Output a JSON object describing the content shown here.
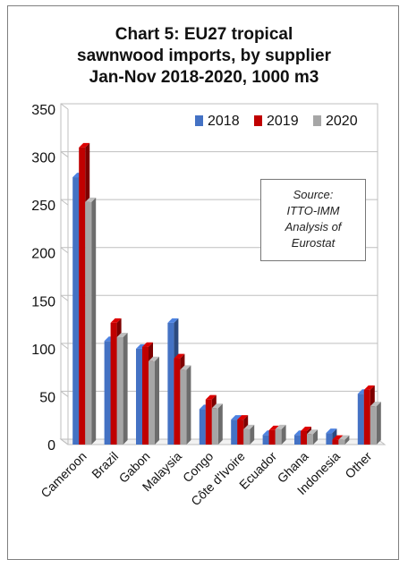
{
  "chart_data": {
    "type": "bar",
    "title_lines": [
      "Chart 5: EU27 tropical",
      "sawnwood imports, by supplier",
      "Jan-Nov 2018-2020, 1000 m3"
    ],
    "categories": [
      "Cameroon",
      "Brazil",
      "Gabon",
      "Malaysia",
      "Congo",
      "Côte d'Ivoire",
      "Ecuador",
      "Ghana",
      "Indonesia",
      "Other"
    ],
    "series": [
      {
        "name": "2018",
        "color": "#4472c4",
        "values": [
          279,
          108,
          100,
          127,
          37,
          26,
          10,
          10,
          12,
          53
        ]
      },
      {
        "name": "2019",
        "color": "#c00000",
        "values": [
          310,
          127,
          102,
          90,
          47,
          26,
          15,
          14,
          5,
          57
        ]
      },
      {
        "name": "2020",
        "color": "#a6a6a6",
        "values": [
          253,
          112,
          87,
          78,
          38,
          16,
          16,
          11,
          5,
          40
        ]
      }
    ],
    "ylim": [
      0,
      350
    ],
    "yticks": [
      "0",
      "50",
      "100",
      "150",
      "200",
      "250",
      "300",
      "350"
    ],
    "grid": true,
    "legend_position": "top-right",
    "annotation_lines": [
      "Source:",
      "ITTO-IMM",
      "Analysis of",
      "Eurostat"
    ]
  }
}
